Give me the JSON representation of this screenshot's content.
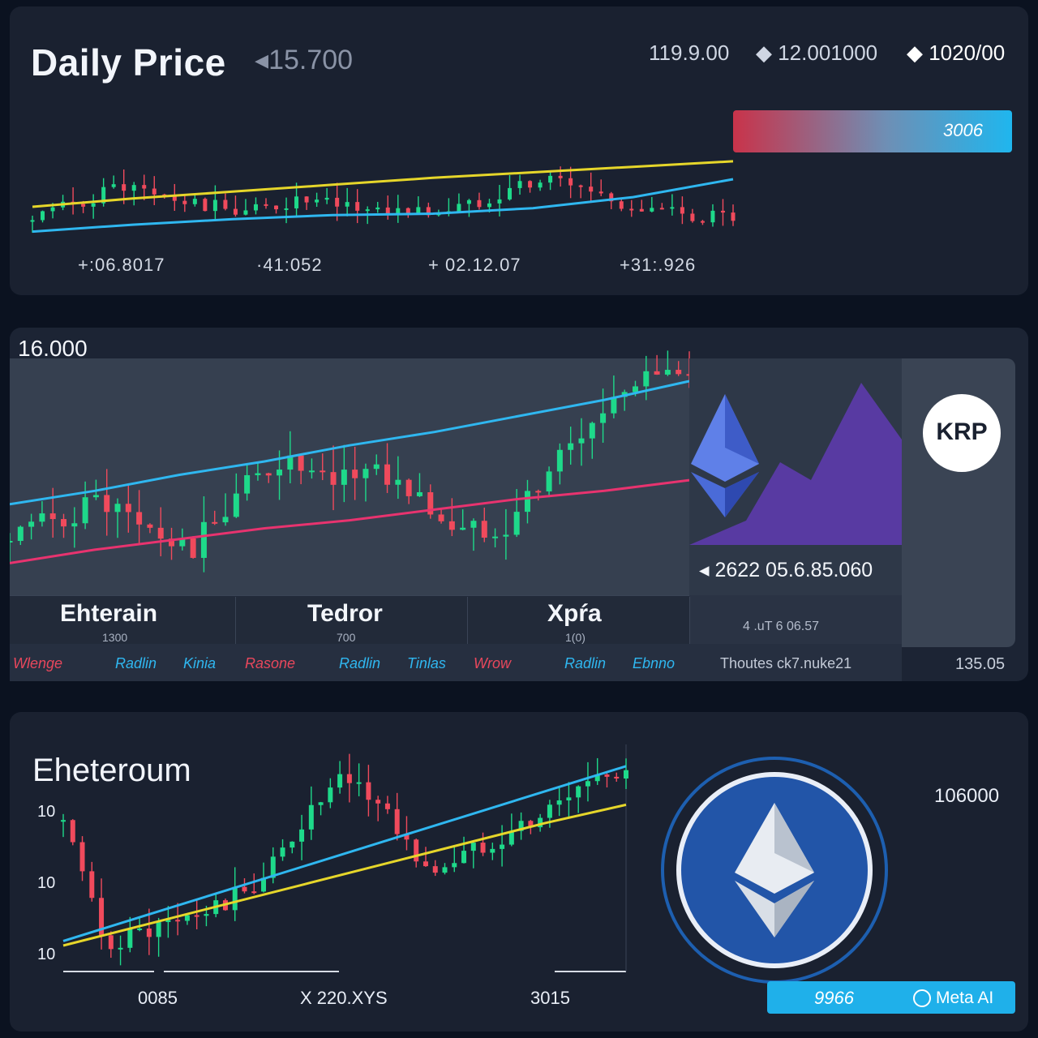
{
  "panel1": {
    "title": "Daily Price",
    "price": "◂15.700",
    "stats": [
      "119.9.00",
      "◆ 12.001000",
      "◆ 1020/00"
    ],
    "bar_label": "3006",
    "ticks": [
      "+:06.8017",
      "·41:052",
      "+ 02.12.07",
      "+31:.926"
    ]
  },
  "panel2": {
    "axis_top": "16.000",
    "coin_price": "◂ 2622 05.6.85.060",
    "coin_sub": "4 .uT 6 06.57",
    "badge": "KRP",
    "corner_value": "135.05",
    "footer_note": "Thoutes ck7.nuke21",
    "tabs": [
      {
        "name": "Ehterain",
        "sub": "1300",
        "legend": [
          "Wlenge",
          "Radlin",
          "Kinia"
        ]
      },
      {
        "name": "Tedror",
        "sub": "700",
        "legend": [
          "Rasone",
          "Radlin",
          "Tinlas"
        ]
      },
      {
        "name": "Xpŕa",
        "sub": "1(0)",
        "legend": [
          "Wrow",
          "Radlin",
          "Ebnno"
        ]
      }
    ]
  },
  "panel3": {
    "title": "Eheteroum",
    "y_labels": [
      "10",
      "10",
      "10"
    ],
    "x_labels": [
      "0085",
      "X 220.XYS",
      "3015"
    ],
    "side_value": "106000",
    "cta_left": "9966",
    "cta_right": "Meta AI"
  },
  "colors": {
    "up": "#1ed98a",
    "down": "#f04a5c",
    "yellow_line": "#e6d62a",
    "blue_line": "#2fb7f0",
    "pink_line": "#e8336f",
    "accent": "#1fb0ea",
    "eth_blue": "#2255a8"
  },
  "icons": [
    "ethereum-logo-icon",
    "ethereum-coin-icon",
    "ring-icon"
  ],
  "chart_data": [
    {
      "type": "line",
      "chart": "daily-price",
      "xlabels": [
        "+:06.8017",
        "·41:052",
        "+ 02.12.07",
        "+31:.926"
      ],
      "series": [
        {
          "values": [
            3.0,
            3.6,
            4.1,
            4.6,
            5.1,
            5.5,
            5.9,
            6.3
          ]
        },
        {
          "values": [
            1.2,
            1.7,
            2.1,
            2.4,
            2.5,
            2.9,
            3.7,
            5.0
          ]
        },
        {
          "values": [
            2.0,
            3.2,
            4.6,
            3.6,
            3.0,
            2.7,
            3.4,
            3.0,
            2.8,
            2.6,
            3.1,
            4.6,
            5.0,
            3.8,
            2.7,
            2.4,
            2.2
          ]
        }
      ],
      "ylim": [
        0,
        10
      ]
    },
    {
      "type": "line",
      "chart": "market-overview",
      "series": [
        {
          "values": [
            3.4,
            3.9,
            4.5,
            5.0,
            5.6,
            6.1,
            6.7,
            7.3,
            8.0
          ]
        },
        {
          "values": [
            1.2,
            1.7,
            2.1,
            2.5,
            2.8,
            3.2,
            3.6,
            3.9,
            4.3
          ]
        },
        {
          "values": [
            2.0,
            2.8,
            3.6,
            2.4,
            1.6,
            3.8,
            5.1,
            4.0,
            4.9,
            3.6,
            2.3,
            2.8,
            4.9,
            6.6,
            8.6,
            7.8
          ]
        }
      ],
      "ylim": [
        0,
        10
      ]
    },
    {
      "type": "line",
      "chart": "eheteroum",
      "ylabels": [
        "10",
        "10",
        "10"
      ],
      "xlabels": [
        "0085",
        "X 220.XYS",
        "3015"
      ],
      "series": [
        {
          "values": [
            1.0,
            1.9,
            2.8,
            3.7,
            4.6,
            5.5,
            6.4,
            7.2
          ]
        },
        {
          "values": [
            1.2,
            2.3,
            3.4,
            4.5,
            5.6,
            6.7,
            7.8,
            8.9
          ]
        },
        {
          "values": [
            6.5,
            1.1,
            1.6,
            2.1,
            2.8,
            4.0,
            6.6,
            8.3,
            7.1,
            4.2,
            5.0,
            6.0,
            6.8,
            8.2,
            8.9
          ]
        }
      ],
      "ylim": [
        0,
        10
      ]
    }
  ]
}
